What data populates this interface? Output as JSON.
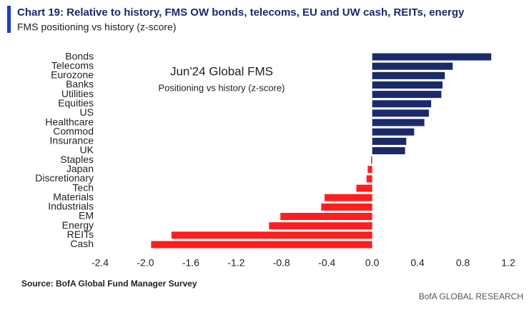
{
  "chart_data": {
    "type": "hbar",
    "title": "Chart 19: Relative to history, FMS OW bonds, telecoms, EU and UW cash, REITs, energy",
    "subtitle": "FMS positioning vs history (z-score)",
    "annotation_title": "Jun'24 Global FMS",
    "annotation_subtitle": "Positioning vs history (z-score)",
    "categories": [
      "Bonds",
      "Telecoms",
      "Eurozone",
      "Banks",
      "Utilities",
      "Equities",
      "US",
      "Healthcare",
      "Commod",
      "Insurance",
      "UK",
      "Staples",
      "Japan",
      "Discretionary",
      "Tech",
      "Materials",
      "Industrials",
      "EM",
      "Energy",
      "REITs",
      "Cash"
    ],
    "values": [
      1.05,
      0.71,
      0.64,
      0.62,
      0.61,
      0.52,
      0.5,
      0.46,
      0.37,
      0.3,
      0.29,
      -0.01,
      -0.04,
      -0.05,
      -0.14,
      -0.42,
      -0.45,
      -0.81,
      -0.91,
      -1.77,
      -1.95
    ],
    "positive_color": "#1b2a6b",
    "negative_color": "#ff1e1e",
    "xlim": [
      -2.4,
      1.2
    ],
    "xticks": [
      -2.4,
      {
        "value": -2,
        "label": "-2.0"
      },
      -1.6,
      -1.2,
      -0.8,
      -0.4,
      {
        "value": 0,
        "label": "0.0"
      },
      0.4,
      0.8,
      1.2
    ],
    "grid": false,
    "source": "Source: BofA Global Fund Manager Survey",
    "brand": "BofA GLOBAL RESEARCH"
  }
}
